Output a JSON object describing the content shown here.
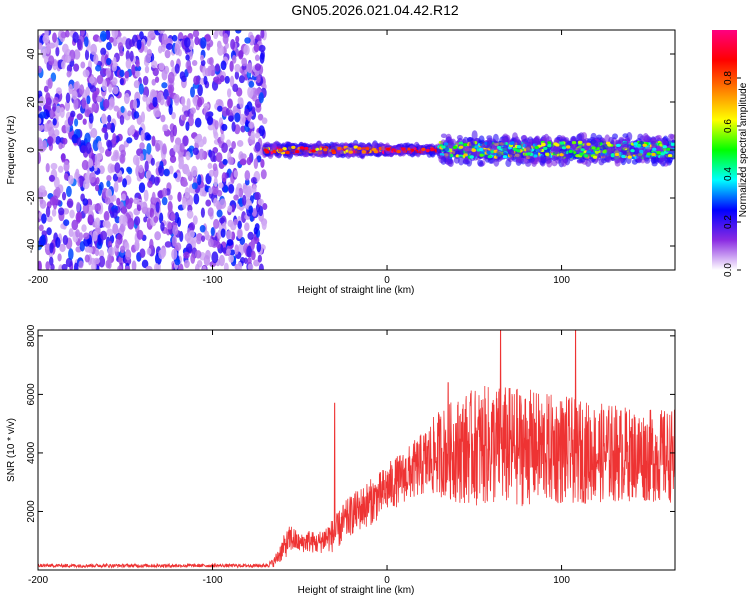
{
  "title": "GN05.2026.021.04.42.R12",
  "chart_data": [
    {
      "type": "heatmap",
      "name": "spectrogram",
      "xlabel": "Height of straight line (km)",
      "ylabel": "Frequency (Hz)",
      "xlim": [
        -200,
        165
      ],
      "ylim": [
        -50,
        50
      ],
      "xticks": [
        -200,
        -100,
        0,
        100
      ],
      "yticks": [
        -40,
        -20,
        0,
        20,
        40
      ],
      "colorbar": {
        "label": "Normalized spectral amplitude",
        "range": [
          0,
          1
        ],
        "ticks": [
          0.0,
          0.2,
          0.4,
          0.6,
          0.8
        ],
        "colors": [
          "#ffffff",
          "#8a2be2",
          "#0000ff",
          "#00ffff",
          "#00ff00",
          "#ffff00",
          "#ff8000",
          "#ff0000",
          "#ff0080"
        ]
      },
      "regions": [
        {
          "x_range": [
            -200,
            -70
          ],
          "description_level": "noise",
          "amplitude": [
            0.05,
            0.3
          ],
          "freq_spread": [
            -50,
            50
          ]
        },
        {
          "x_range": [
            -70,
            0
          ],
          "amplitude": [
            0.6,
            1.0
          ],
          "center_freq": 0,
          "half_width": 3
        },
        {
          "x_range": [
            0,
            30
          ],
          "amplitude": [
            0.8,
            1.0
          ],
          "center_freq": 0,
          "half_width": 2
        },
        {
          "x_range": [
            30,
            165
          ],
          "amplitude": [
            0.3,
            0.7
          ],
          "center_freq": 0,
          "half_width": 8
        }
      ]
    },
    {
      "type": "line",
      "name": "snr",
      "xlabel": "Height of straight line (km)",
      "ylabel": "SNR (10 * v/v)",
      "xlim": [
        -200,
        165
      ],
      "ylim": [
        0,
        8200
      ],
      "xticks": [
        -200,
        -100,
        0,
        100
      ],
      "yticks": [
        2000,
        4000,
        6000,
        8000
      ],
      "color": "#ee3333",
      "envelope": {
        "x": [
          -200,
          -70,
          -65,
          -60,
          -55,
          -50,
          -45,
          -40,
          -35,
          -30,
          -25,
          -20,
          -15,
          -10,
          -5,
          0,
          10,
          20,
          25,
          30,
          40,
          50,
          60,
          70,
          80,
          90,
          100,
          110,
          120,
          130,
          140,
          150,
          160,
          165
        ],
        "mean": [
          150,
          150,
          250,
          700,
          1100,
          900,
          1000,
          900,
          1100,
          1200,
          1600,
          1900,
          2100,
          2300,
          2500,
          2800,
          3200,
          3600,
          3800,
          4000,
          4100,
          4200,
          4250,
          4200,
          4200,
          4150,
          4100,
          4050,
          4000,
          4000,
          3950,
          3900,
          3900,
          3900
        ],
        "amp": [
          60,
          60,
          150,
          400,
          500,
          300,
          400,
          350,
          500,
          600,
          700,
          700,
          750,
          800,
          800,
          850,
          900,
          1100,
          1300,
          1500,
          1800,
          2000,
          2100,
          2100,
          2000,
          1900,
          1900,
          1800,
          1700,
          1700,
          1600,
          1600,
          1600,
          1600
        ]
      },
      "spikes": [
        {
          "x": -30,
          "y": 5700
        },
        {
          "x": 35,
          "y": 6400
        },
        {
          "x": 65,
          "y": 8200
        },
        {
          "x": 108,
          "y": 8200
        }
      ]
    }
  ]
}
